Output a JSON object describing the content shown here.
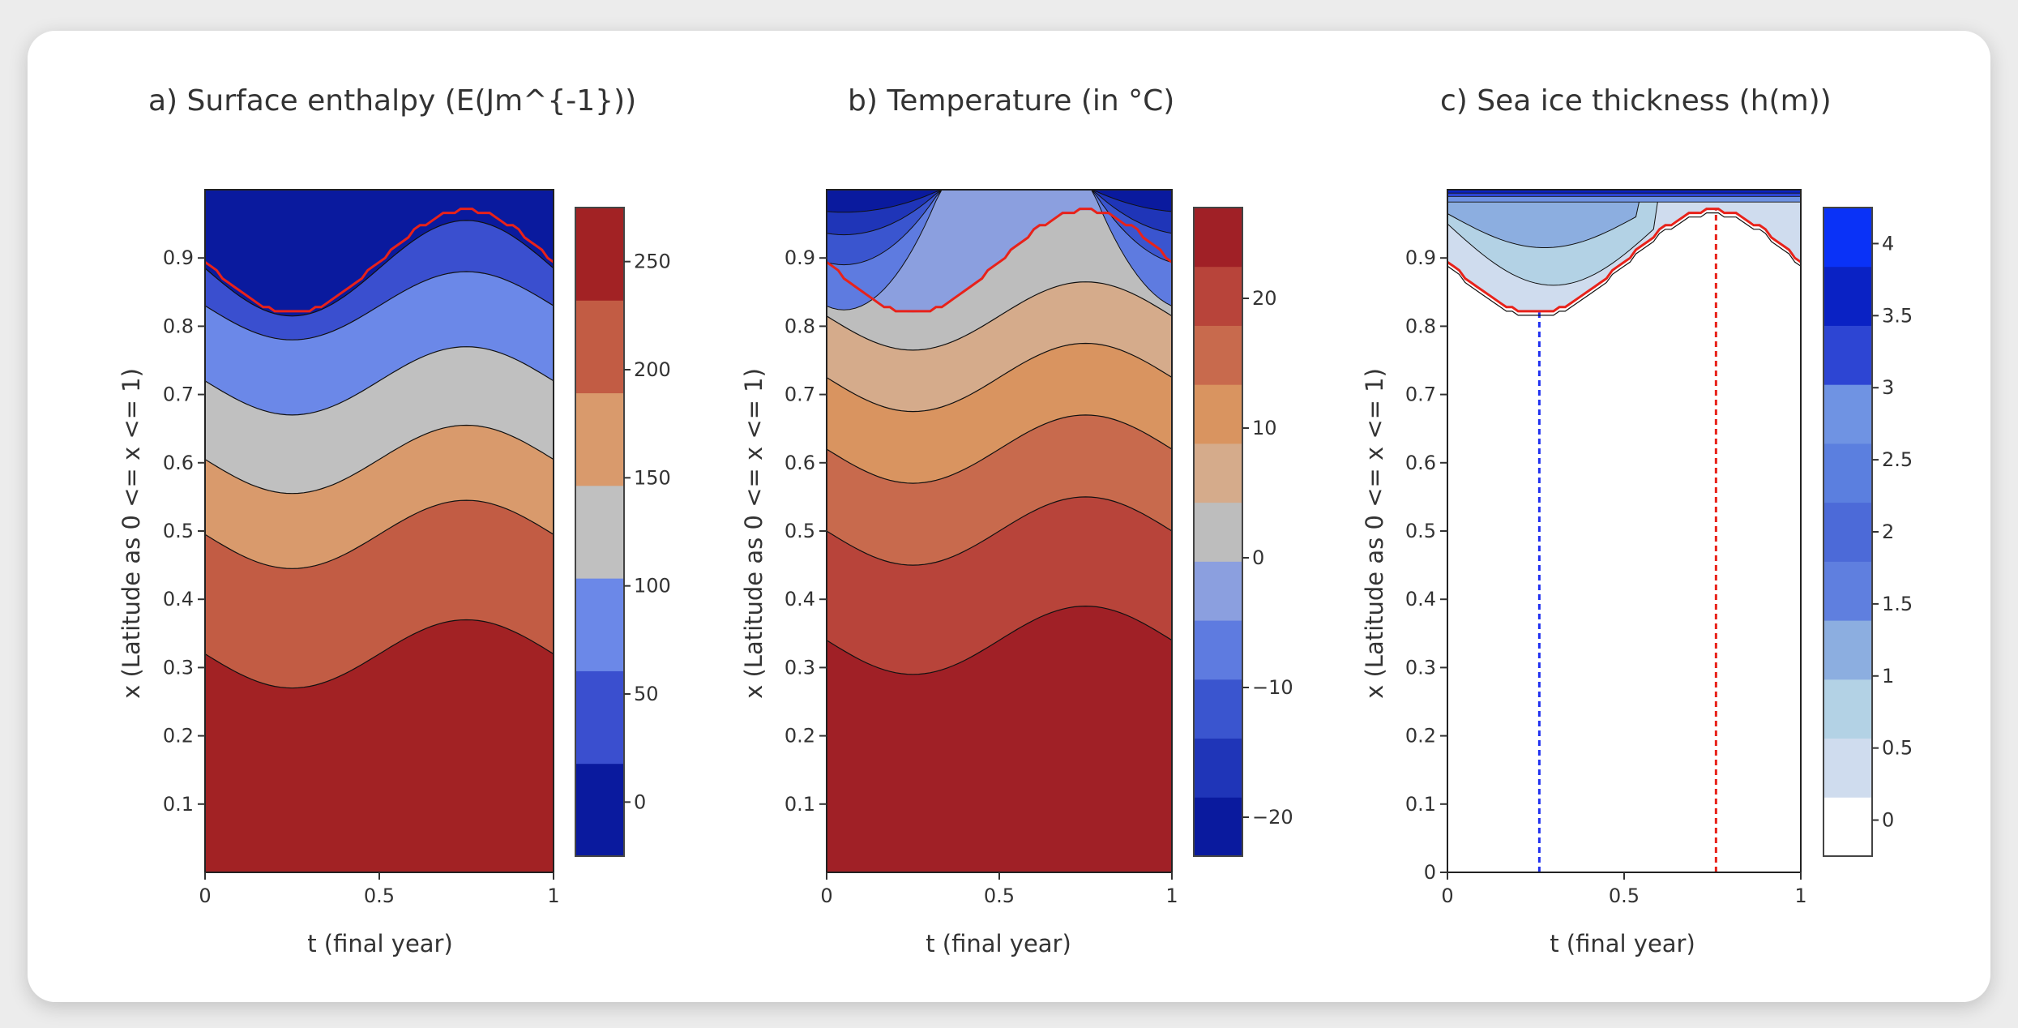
{
  "chart_data": [
    {
      "type": "contour",
      "title": "a) Surface enthalpy (E(Jm^{-1}))",
      "xlabel": "t (final year)",
      "ylabel": "x (Latitude as 0 <= x <= 1)",
      "xlim": [
        0,
        1
      ],
      "ylim": [
        0,
        1
      ],
      "x_ticks": [
        "0",
        "0.5",
        "1"
      ],
      "y_ticks": [
        "0.1",
        "0.2",
        "0.3",
        "0.4",
        "0.5",
        "0.6",
        "0.7",
        "0.8",
        "0.9"
      ],
      "contour_lines": [
        {
          "level": 250,
          "x_at_t0": 0.32,
          "amplitude": 0.05
        },
        {
          "level": 200,
          "x_at_t0": 0.495,
          "amplitude": 0.05
        },
        {
          "level": 150,
          "x_at_t0": 0.605,
          "amplitude": 0.05
        },
        {
          "level": 100,
          "x_at_t0": 0.72,
          "amplitude": 0.05
        },
        {
          "level": 50,
          "x_at_t0": 0.83,
          "amplitude": 0.05
        },
        {
          "level": 0,
          "x_at_t0": 0.885,
          "amplitude": 0.07
        }
      ],
      "ice_edge": {
        "color": "#e8221a",
        "x_at_t0": 0.895,
        "amplitude": 0.075
      },
      "colorbar": {
        "range": [
          -25,
          275
        ],
        "colors": [
          "#0a1a9e",
          "#3a4fcf",
          "#6b88e8",
          "#c0c0c0",
          "#d99a6c",
          "#c25c44",
          "#a22224"
        ],
        "tick_values": [
          0,
          50,
          100,
          150,
          200,
          250
        ],
        "tick_labels": [
          "0",
          "50",
          "100",
          "150",
          "200",
          "250"
        ]
      }
    },
    {
      "type": "contour",
      "title": "b) Temperature (in °C)",
      "xlabel": "t (final year)",
      "ylabel": "x (Latitude as 0 <= x <= 1)",
      "xlim": [
        0,
        1
      ],
      "ylim": [
        0,
        1
      ],
      "x_ticks": [
        "0",
        "0.5",
        "1"
      ],
      "y_ticks": [
        "0.1",
        "0.2",
        "0.3",
        "0.4",
        "0.5",
        "0.6",
        "0.7",
        "0.8",
        "0.9"
      ],
      "contour_lines": [
        {
          "level": 25,
          "x_at_t0": 0.34,
          "amplitude": 0.05
        },
        {
          "level": 20,
          "x_at_t0": 0.5,
          "amplitude": 0.05
        },
        {
          "level": 15,
          "x_at_t0": 0.62,
          "amplitude": 0.05
        },
        {
          "level": 10,
          "x_at_t0": 0.725,
          "amplitude": 0.05
        },
        {
          "level": 5,
          "x_at_t0": 0.815,
          "amplitude": 0.05
        }
      ],
      "ice_edge": {
        "color": "#e8221a",
        "x_at_t0": 0.895,
        "amplitude": 0.075
      },
      "colorbar": {
        "range": [
          -23,
          27
        ],
        "colors": [
          "#0a1a9e",
          "#1f35b8",
          "#3a55cf",
          "#5e7be0",
          "#8b9fdf",
          "#bdbdbd",
          "#d5ab8b",
          "#d99460",
          "#c86a4d",
          "#b8443a",
          "#a02026"
        ],
        "tick_values": [
          -20,
          -10,
          0,
          10,
          20
        ],
        "tick_labels": [
          "−20",
          "−10",
          "0",
          "10",
          "20"
        ]
      }
    },
    {
      "type": "contour",
      "title": "c) Sea ice thickness (h(m))",
      "xlabel": "t (final year)",
      "ylabel": "x (Latitude as 0 <= x <= 1)",
      "xlim": [
        0,
        1
      ],
      "ylim": [
        0,
        1
      ],
      "x_ticks": [
        "0",
        "0.5",
        "1"
      ],
      "y_ticks": [
        "0",
        "0.1",
        "0.2",
        "0.3",
        "0.4",
        "0.5",
        "0.6",
        "0.7",
        "0.8",
        "0.9"
      ],
      "vertical_lines": [
        {
          "t": 0.26,
          "color": "#1f2ff0"
        },
        {
          "t": 0.76,
          "color": "#e8221a"
        }
      ],
      "ice_edge": {
        "color": "#e8221a",
        "x_at_t0": 0.895,
        "amplitude": 0.075
      },
      "colorbar": {
        "range": [
          -0.25,
          4.25
        ],
        "colors": [
          "#ffffff",
          "#cfdcee",
          "#b3d2e5",
          "#8caee0",
          "#5f7fdf",
          "#4c6ad8",
          "#5b7fdf",
          "#6f93e3",
          "#2d45d3",
          "#0a22c4",
          "#0a32f7"
        ],
        "tick_values": [
          0,
          0.5,
          1,
          1.5,
          2,
          2.5,
          3,
          3.5,
          4
        ],
        "tick_labels": [
          "0",
          "0.5",
          "1",
          "1.5",
          "2",
          "2.5",
          "3",
          "3.5",
          "4"
        ]
      }
    }
  ]
}
